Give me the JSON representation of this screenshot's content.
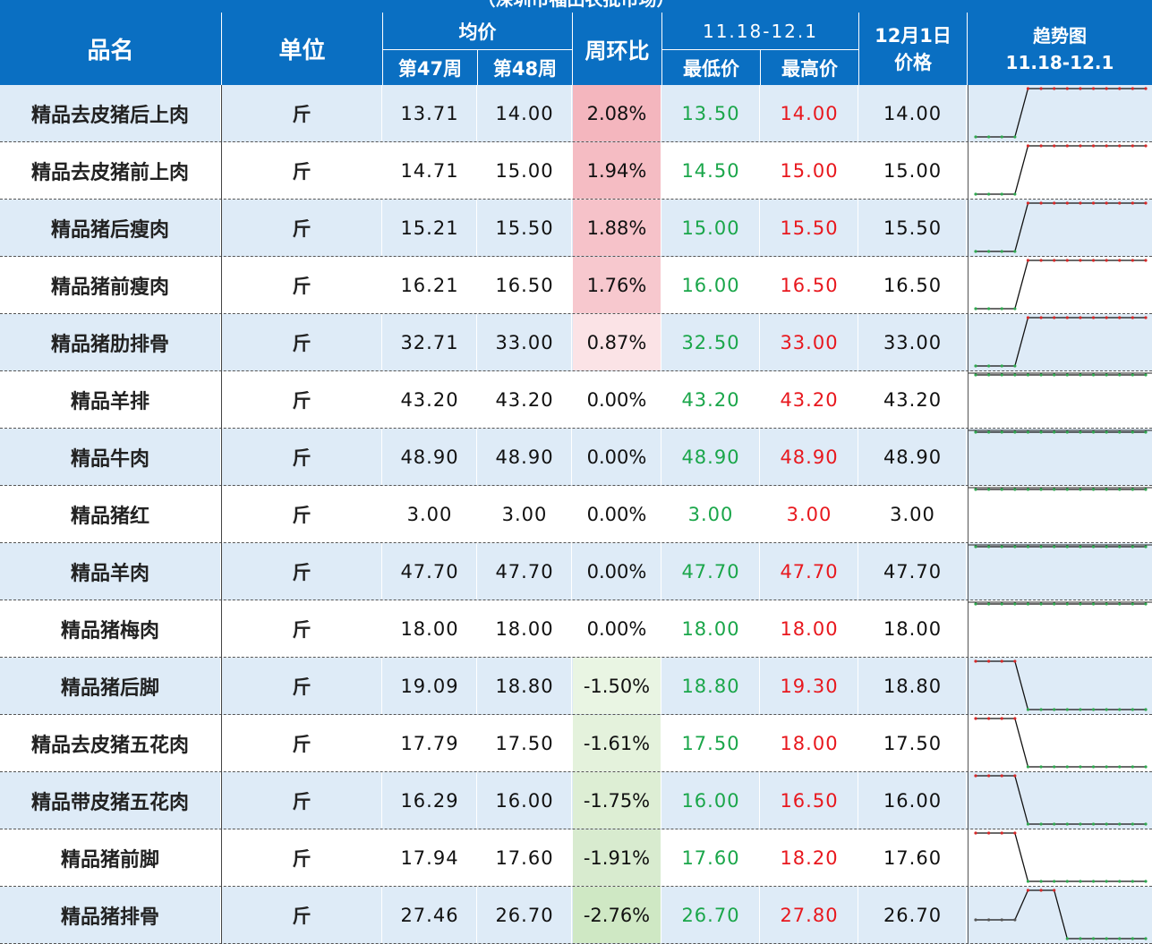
{
  "banner_title": "（深圳市福田农批市场）",
  "header": {
    "name": "品名",
    "unit": "单位",
    "avg": "均价",
    "week47": "第47周",
    "week48": "第48周",
    "wow": "周环比",
    "range": "11.18-12.1",
    "low": "最低价",
    "high": "最高价",
    "dec1": "12月1日\n价格",
    "trend": "趋势图\n11.18-12.1"
  },
  "colors": {
    "header_bg": "#0a6fc2",
    "row_alt": "#deebf7",
    "low_text": "#1aa64a",
    "high_text": "#e8181e",
    "pct_up_strong": "#f4b6be",
    "pct_up_light": "#fbe3e6",
    "pct_down_light": "#e9f5e3",
    "pct_down_strong": "#cfe8c4"
  },
  "rows": [
    {
      "name": "精品去皮猪后上肉",
      "unit": "斤",
      "w47": "13.71",
      "w48": "14.00",
      "pct": "2.08%",
      "low": "13.50",
      "high": "14.00",
      "dec1": "14.00",
      "trend": "up"
    },
    {
      "name": "精品去皮猪前上肉",
      "unit": "斤",
      "w47": "14.71",
      "w48": "15.00",
      "pct": "1.94%",
      "low": "14.50",
      "high": "15.00",
      "dec1": "15.00",
      "trend": "up"
    },
    {
      "name": "精品猪后瘦肉",
      "unit": "斤",
      "w47": "15.21",
      "w48": "15.50",
      "pct": "1.88%",
      "low": "15.00",
      "high": "15.50",
      "dec1": "15.50",
      "trend": "up"
    },
    {
      "name": "精品猪前瘦肉",
      "unit": "斤",
      "w47": "16.21",
      "w48": "16.50",
      "pct": "1.76%",
      "low": "16.00",
      "high": "16.50",
      "dec1": "16.50",
      "trend": "up"
    },
    {
      "name": "精品猪肋排骨",
      "unit": "斤",
      "w47": "32.71",
      "w48": "33.00",
      "pct": "0.87%",
      "low": "32.50",
      "high": "33.00",
      "dec1": "33.00",
      "trend": "up"
    },
    {
      "name": "精品羊排",
      "unit": "斤",
      "w47": "43.20",
      "w48": "43.20",
      "pct": "0.00%",
      "low": "43.20",
      "high": "43.20",
      "dec1": "43.20",
      "trend": "flat"
    },
    {
      "name": "精品牛肉",
      "unit": "斤",
      "w47": "48.90",
      "w48": "48.90",
      "pct": "0.00%",
      "low": "48.90",
      "high": "48.90",
      "dec1": "48.90",
      "trend": "flat"
    },
    {
      "name": "精品猪红",
      "unit": "斤",
      "w47": "3.00",
      "w48": "3.00",
      "pct": "0.00%",
      "low": "3.00",
      "high": "3.00",
      "dec1": "3.00",
      "trend": "flat"
    },
    {
      "name": "精品羊肉",
      "unit": "斤",
      "w47": "47.70",
      "w48": "47.70",
      "pct": "0.00%",
      "low": "47.70",
      "high": "47.70",
      "dec1": "47.70",
      "trend": "flat"
    },
    {
      "name": "精品猪梅肉",
      "unit": "斤",
      "w47": "18.00",
      "w48": "18.00",
      "pct": "0.00%",
      "low": "18.00",
      "high": "18.00",
      "dec1": "18.00",
      "trend": "flat"
    },
    {
      "name": "精品猪后脚",
      "unit": "斤",
      "w47": "19.09",
      "w48": "18.80",
      "pct": "-1.50%",
      "low": "18.80",
      "high": "19.30",
      "dec1": "18.80",
      "trend": "down"
    },
    {
      "name": "精品去皮猪五花肉",
      "unit": "斤",
      "w47": "17.79",
      "w48": "17.50",
      "pct": "-1.61%",
      "low": "17.50",
      "high": "18.00",
      "dec1": "17.50",
      "trend": "down"
    },
    {
      "name": "精品带皮猪五花肉",
      "unit": "斤",
      "w47": "16.29",
      "w48": "16.00",
      "pct": "-1.75%",
      "low": "16.00",
      "high": "16.50",
      "dec1": "16.00",
      "trend": "down"
    },
    {
      "name": "精品猪前脚",
      "unit": "斤",
      "w47": "17.94",
      "w48": "17.60",
      "pct": "-1.91%",
      "low": "17.60",
      "high": "18.20",
      "dec1": "17.60",
      "trend": "down"
    },
    {
      "name": "精品猪排骨",
      "unit": "斤",
      "w47": "27.46",
      "w48": "26.70",
      "pct": "-2.76%",
      "low": "26.70",
      "high": "27.80",
      "dec1": "26.70",
      "trend": "updown"
    }
  ]
}
